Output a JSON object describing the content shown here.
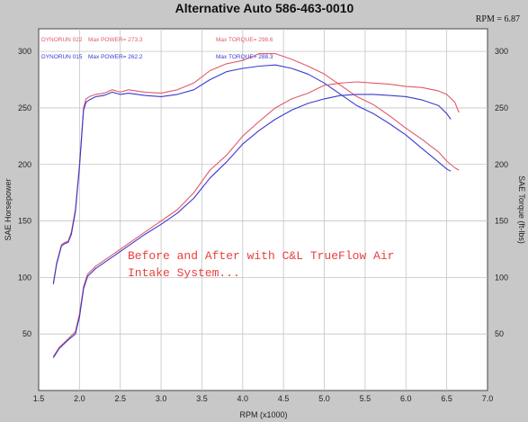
{
  "chart_data": {
    "type": "line",
    "title": "Alternative Auto 586-463-0010",
    "rpm_readout": "RPM = 6.87",
    "xlabel": "RPM (x1000)",
    "ylabel_left": "SAE Horsepower",
    "ylabel_right": "SAE Torque (ft-lbs)",
    "xlim": [
      1.5,
      7.0
    ],
    "ylim_left": [
      0,
      320
    ],
    "ylim_right": [
      0,
      320
    ],
    "x_ticks": [
      "1.5",
      "2.0",
      "2.5",
      "3.0",
      "3.5",
      "4.0",
      "4.5",
      "5.0",
      "5.5",
      "6.0",
      "6.5",
      "7.0"
    ],
    "y_ticks_left": [
      "50",
      "100",
      "150",
      "200",
      "250",
      "300"
    ],
    "y_ticks_right": [
      "50",
      "100",
      "150",
      "200",
      "250",
      "300"
    ],
    "grid": true,
    "legend": [
      {
        "run": "DYNORUN 022",
        "power": "Max POWER= 273.3",
        "torque": "Max TORQUE= 298.6",
        "color": "#e05a6a"
      },
      {
        "run": "DYNORUN 015",
        "power": "Max POWER= 262.2",
        "torque": "Max TORQUE= 288.3",
        "color": "#3a3ad0"
      }
    ],
    "annotation": [
      "Before and After with C&L TrueFlow Air",
      "Intake System..."
    ],
    "series": [
      {
        "name": "DYNORUN 022",
        "measure": "torque",
        "color": "#e05a6a",
        "x": [
          1.68,
          1.72,
          1.78,
          1.82,
          1.86,
          1.9,
          1.95,
          2.0,
          2.05,
          2.08,
          2.12,
          2.2,
          2.3,
          2.4,
          2.5,
          2.6,
          2.8,
          3.0,
          3.2,
          3.4,
          3.6,
          3.8,
          4.0,
          4.2,
          4.4,
          4.6,
          4.8,
          5.0,
          5.2,
          5.4,
          5.6,
          5.8,
          6.0,
          6.2,
          6.4,
          6.5,
          6.6,
          6.65
        ],
        "y": [
          95,
          113,
          129,
          131,
          132,
          140,
          160,
          200,
          250,
          258,
          260,
          262,
          263,
          266,
          264,
          266,
          264,
          263,
          266,
          272,
          283,
          289,
          292,
          298,
          298,
          293,
          287,
          280,
          270,
          260,
          253,
          243,
          232,
          222,
          211,
          203,
          197,
          195
        ]
      },
      {
        "name": "DYNORUN 015",
        "measure": "torque",
        "color": "#3a3ad0",
        "x": [
          1.68,
          1.72,
          1.78,
          1.82,
          1.86,
          1.9,
          1.95,
          2.0,
          2.05,
          2.08,
          2.12,
          2.2,
          2.3,
          2.4,
          2.5,
          2.6,
          2.8,
          3.0,
          3.2,
          3.4,
          3.6,
          3.8,
          4.0,
          4.2,
          4.4,
          4.6,
          4.8,
          5.0,
          5.2,
          5.4,
          5.6,
          5.8,
          6.0,
          6.2,
          6.4,
          6.5,
          6.55
        ],
        "y": [
          94,
          112,
          128,
          130,
          131,
          138,
          158,
          198,
          248,
          255,
          257,
          260,
          261,
          264,
          262,
          263,
          261,
          260,
          262,
          266,
          275,
          282,
          285,
          287,
          288,
          285,
          280,
          272,
          262,
          252,
          245,
          236,
          226,
          214,
          202,
          196,
          194
        ]
      },
      {
        "name": "DYNORUN 022",
        "measure": "power",
        "color": "#e05a6a",
        "x": [
          1.68,
          1.75,
          1.85,
          1.95,
          2.0,
          2.05,
          2.1,
          2.2,
          2.4,
          2.6,
          2.8,
          3.0,
          3.2,
          3.4,
          3.6,
          3.8,
          4.0,
          4.2,
          4.4,
          4.6,
          4.8,
          5.0,
          5.2,
          5.4,
          5.6,
          5.8,
          6.0,
          6.2,
          6.4,
          6.5,
          6.6,
          6.65
        ],
        "y": [
          30,
          38,
          45,
          52,
          68,
          92,
          103,
          110,
          120,
          130,
          140,
          150,
          160,
          175,
          195,
          208,
          225,
          238,
          250,
          258,
          263,
          270,
          272,
          273,
          272,
          271,
          269,
          268,
          265,
          262,
          255,
          246
        ]
      },
      {
        "name": "DYNORUN 015",
        "measure": "power",
        "color": "#3a3ad0",
        "x": [
          1.68,
          1.75,
          1.85,
          1.95,
          2.0,
          2.05,
          2.1,
          2.2,
          2.4,
          2.6,
          2.8,
          3.0,
          3.2,
          3.4,
          3.6,
          3.8,
          4.0,
          4.2,
          4.4,
          4.6,
          4.8,
          5.0,
          5.2,
          5.4,
          5.6,
          5.8,
          6.0,
          6.2,
          6.4,
          6.5,
          6.55
        ],
        "y": [
          29,
          37,
          44,
          50,
          65,
          90,
          101,
          108,
          118,
          128,
          138,
          147,
          157,
          170,
          188,
          202,
          218,
          230,
          240,
          248,
          254,
          258,
          261,
          262,
          262,
          261,
          260,
          257,
          252,
          245,
          240
        ]
      }
    ]
  }
}
